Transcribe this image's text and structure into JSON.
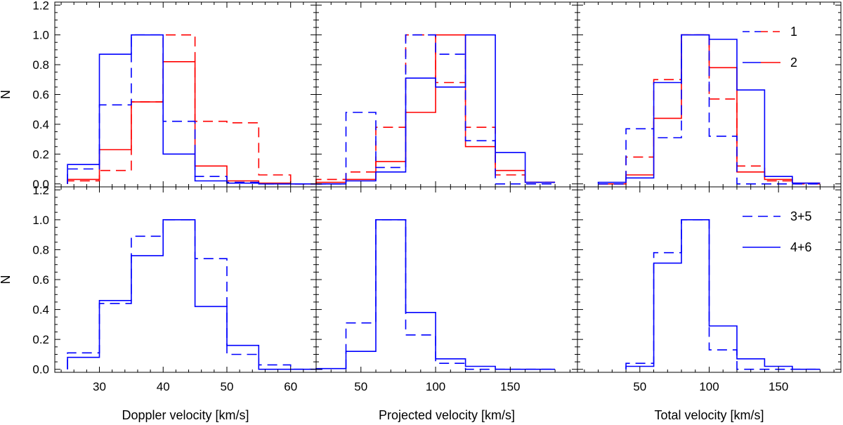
{
  "colors": {
    "red": "#ff0000",
    "blue": "#0000ff",
    "axis": "#000000"
  },
  "chart_data": [
    {
      "type": "histogram-step",
      "xlabel": "",
      "ylabel": "N",
      "ylim": [
        -0.02,
        1.22
      ],
      "xlim": [
        23,
        64
      ],
      "xticks": [
        30,
        40,
        50,
        60
      ],
      "show_xtick_labels": false,
      "legend": [],
      "series": [
        {
          "name": "1",
          "color": "red",
          "dash": true,
          "edges": [
            25,
            30,
            35,
            40,
            45,
            50,
            55,
            60
          ],
          "values": [
            0.02,
            0.09,
            0.55,
            1.0,
            0.42,
            0.41,
            0.06,
            0.0
          ]
        },
        {
          "name": "2",
          "color": "red",
          "dash": false,
          "edges": [
            25,
            30,
            35,
            40,
            45,
            50,
            55,
            60
          ],
          "values": [
            0.03,
            0.23,
            0.55,
            0.82,
            0.12,
            0.02,
            0.005,
            0.0
          ]
        },
        {
          "name": "1",
          "color": "blue",
          "dash": true,
          "edges": [
            25,
            30,
            35,
            40,
            45,
            50,
            55,
            60
          ],
          "values": [
            0.1,
            0.53,
            1.0,
            0.42,
            0.05,
            0.01,
            0.0,
            0.0
          ]
        },
        {
          "name": "2",
          "color": "blue",
          "dash": false,
          "edges": [
            25,
            30,
            35,
            40,
            45,
            50,
            55,
            60
          ],
          "values": [
            0.13,
            0.87,
            1.0,
            0.2,
            0.02,
            0.005,
            0.0,
            0.0
          ]
        }
      ]
    },
    {
      "type": "histogram-step",
      "xlabel": "",
      "ylabel": "",
      "ylim": [
        -0.02,
        1.22
      ],
      "xlim": [
        20,
        195
      ],
      "xticks": [
        50,
        100,
        150
      ],
      "show_xtick_labels": false,
      "legend": [],
      "series": [
        {
          "name": "1",
          "color": "red",
          "dash": true,
          "edges": [
            20,
            40,
            60,
            80,
            100,
            120,
            140,
            160
          ],
          "values": [
            0.03,
            0.08,
            0.38,
            1.0,
            0.68,
            0.38,
            0.06,
            0.01
          ]
        },
        {
          "name": "2",
          "color": "red",
          "dash": false,
          "edges": [
            20,
            40,
            60,
            80,
            100,
            120,
            140,
            160
          ],
          "values": [
            0.01,
            0.03,
            0.15,
            0.48,
            1.0,
            0.25,
            0.09,
            0.01
          ]
        },
        {
          "name": "1",
          "color": "blue",
          "dash": true,
          "edges": [
            20,
            40,
            60,
            80,
            100,
            120,
            140,
            160
          ],
          "values": [
            0.0,
            0.48,
            0.11,
            1.0,
            0.87,
            0.29,
            0.0,
            0.0
          ]
        },
        {
          "name": "2",
          "color": "blue",
          "dash": false,
          "edges": [
            20,
            40,
            60,
            80,
            100,
            120,
            140,
            160
          ],
          "values": [
            0.0,
            0.02,
            0.08,
            0.71,
            0.65,
            1.0,
            0.21,
            0.01
          ]
        }
      ]
    },
    {
      "type": "histogram-step",
      "xlabel": "",
      "ylabel": "",
      "ylim": [
        -0.02,
        1.22
      ],
      "xlim": [
        5,
        195
      ],
      "xticks": [
        50,
        100,
        150
      ],
      "show_xtick_labels": false,
      "legend": [
        {
          "label": "1",
          "dash": true
        },
        {
          "label": "2",
          "dash": false
        }
      ],
      "series": [
        {
          "name": "1",
          "color": "red",
          "dash": true,
          "edges": [
            20,
            40,
            60,
            80,
            100,
            120,
            140,
            160
          ],
          "values": [
            0.0,
            0.18,
            0.7,
            1.0,
            0.57,
            0.12,
            0.02,
            0.0
          ]
        },
        {
          "name": "2",
          "color": "red",
          "dash": false,
          "edges": [
            20,
            40,
            60,
            80,
            100,
            120,
            140,
            160
          ],
          "values": [
            0.0,
            0.06,
            0.44,
            1.0,
            0.78,
            0.08,
            0.03,
            0.005
          ]
        },
        {
          "name": "1",
          "color": "blue",
          "dash": true,
          "edges": [
            20,
            40,
            60,
            80,
            100,
            120,
            140,
            160
          ],
          "values": [
            0.0,
            0.37,
            0.31,
            1.0,
            0.32,
            0.0,
            0.0,
            0.0
          ]
        },
        {
          "name": "2",
          "color": "blue",
          "dash": false,
          "edges": [
            20,
            40,
            60,
            80,
            100,
            120,
            140,
            160
          ],
          "values": [
            0.01,
            0.04,
            0.68,
            1.0,
            0.97,
            0.63,
            0.05,
            0.005
          ]
        }
      ]
    },
    {
      "type": "histogram-step",
      "xlabel": "Doppler velocity [km/s]",
      "ylabel": "N",
      "ylim": [
        -0.02,
        1.22
      ],
      "xlim": [
        23,
        64
      ],
      "xticks": [
        30,
        40,
        50,
        60
      ],
      "xtick_labels": [
        "30",
        "40",
        "50",
        "60"
      ],
      "show_xtick_labels": true,
      "legend": [],
      "series": [
        {
          "name": "3+5",
          "color": "blue",
          "dash": true,
          "edges": [
            25,
            30,
            35,
            40,
            45,
            50,
            55,
            60
          ],
          "values": [
            0.11,
            0.44,
            0.89,
            1.0,
            0.74,
            0.1,
            0.03,
            0.0
          ]
        },
        {
          "name": "4+6",
          "color": "blue",
          "dash": false,
          "edges": [
            25,
            30,
            35,
            40,
            45,
            50,
            55,
            60
          ],
          "values": [
            0.08,
            0.46,
            0.76,
            1.0,
            0.42,
            0.16,
            0.0,
            0.0
          ]
        }
      ]
    },
    {
      "type": "histogram-step",
      "xlabel": "Projected velocity [km/s]",
      "ylabel": "",
      "ylim": [
        -0.02,
        1.22
      ],
      "xlim": [
        20,
        195
      ],
      "xticks": [
        50,
        100,
        150
      ],
      "xtick_labels": [
        "50",
        "100",
        "150"
      ],
      "show_xtick_labels": true,
      "legend": [],
      "series": [
        {
          "name": "3+5",
          "color": "blue",
          "dash": true,
          "edges": [
            40,
            60,
            80,
            100,
            120,
            140,
            160
          ],
          "values": [
            0.31,
            1.0,
            0.23,
            0.04,
            0.0,
            0.0,
            0.0
          ]
        },
        {
          "name": "4+6",
          "color": "blue",
          "dash": false,
          "edges": [
            20,
            40,
            60,
            80,
            100,
            120,
            140,
            160
          ],
          "values": [
            0.005,
            0.12,
            1.0,
            0.38,
            0.07,
            0.02,
            0.0,
            0.0
          ]
        }
      ]
    },
    {
      "type": "histogram-step",
      "xlabel": "Total velocity [km/s]",
      "ylabel": "",
      "ylim": [
        -0.02,
        1.22
      ],
      "xlim": [
        5,
        195
      ],
      "xticks": [
        50,
        100,
        150
      ],
      "xtick_labels": [
        "50",
        "100",
        "150"
      ],
      "show_xtick_labels": true,
      "legend": [
        {
          "label": "3+5",
          "dash": true
        },
        {
          "label": "4+6",
          "dash": false
        }
      ],
      "series": [
        {
          "name": "3+5",
          "color": "blue",
          "dash": true,
          "edges": [
            40,
            60,
            80,
            100,
            120,
            140,
            160
          ],
          "values": [
            0.04,
            0.78,
            1.0,
            0.13,
            0.0,
            0.0,
            0.0
          ]
        },
        {
          "name": "4+6",
          "color": "blue",
          "dash": false,
          "edges": [
            40,
            60,
            80,
            100,
            120,
            140,
            160
          ],
          "values": [
            0.02,
            0.71,
            1.0,
            0.29,
            0.07,
            0.02,
            0.0
          ]
        }
      ]
    }
  ],
  "yticks": [
    0.0,
    0.2,
    0.4,
    0.6,
    0.8,
    1.0,
    1.2
  ],
  "ytick_labels": [
    "0.0",
    "0.2",
    "0.4",
    "0.6",
    "0.8",
    "1.0",
    "1.2"
  ]
}
